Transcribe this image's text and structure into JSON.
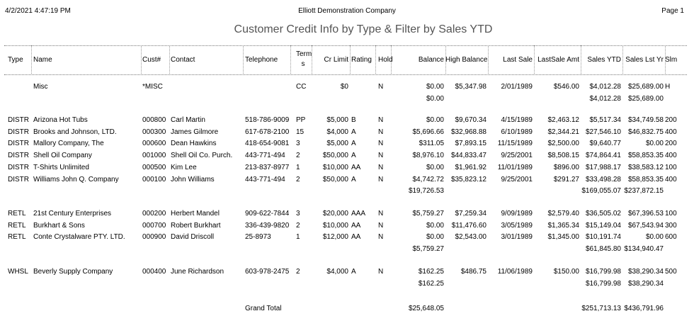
{
  "header": {
    "datetime": "4/2/2021 4:47:19 PM",
    "company": "Elliott Demonstration Company",
    "page": "Page 1",
    "title": "Customer Credit Info by Type & Filter by Sales YTD"
  },
  "columns": {
    "type": "Type",
    "name": "Name",
    "cust": "Cust#",
    "contact": "Contact",
    "phone": "Telephone",
    "terms_top": "Term",
    "terms_bottom": "s",
    "limit": "Cr Limit",
    "rating": "Rating",
    "hold": "Hold",
    "balance": "Balance",
    "high": "High Balance",
    "lastsale": "Last Sale",
    "lastamt": "LastSale Amt",
    "ytd": "Sales YTD",
    "lastyr": "Sales Lst Yr",
    "slm": "Slm"
  },
  "groups": [
    {
      "rows": [
        {
          "type": "",
          "name": "Misc",
          "cust": "*MISC",
          "contact": "",
          "phone": "",
          "terms": "CC",
          "limit": "$0",
          "rating": "",
          "hold": "N",
          "balance": "$0.00",
          "high": "$5,347.98",
          "lastsale": "2/01/1989",
          "lastamt": "$546.00",
          "ytd": "$4,012.28",
          "lastyr": "$25,689.00",
          "slm": "H"
        }
      ],
      "subtotal": {
        "balance": "$0.00",
        "ytd": "$4,012.28",
        "lastyr": "$25,689.00"
      }
    },
    {
      "rows": [
        {
          "type": "DISTR",
          "name": "Arizona Hot Tubs",
          "cust": "000800",
          "contact": "Carl Martin",
          "phone": "518-786-9009",
          "terms": "PP",
          "limit": "$5,000",
          "rating": "B",
          "hold": "N",
          "balance": "$0.00",
          "high": "$9,670.34",
          "lastsale": "4/15/1989",
          "lastamt": "$2,463.12",
          "ytd": "$5,517.34",
          "lastyr": "$34,749.58",
          "slm": "200"
        },
        {
          "type": "DISTR",
          "name": "Brooks and Johnson, LTD.",
          "cust": "000300",
          "contact": "James Gilmore",
          "phone": "617-678-2100",
          "terms": "15",
          "limit": "$4,000",
          "rating": "A",
          "hold": "N",
          "balance": "$5,696.66",
          "high": "$32,968.88",
          "lastsale": "6/10/1989",
          "lastamt": "$2,344.21",
          "ytd": "$27,546.10",
          "lastyr": "$46,832.75",
          "slm": "400"
        },
        {
          "type": "DISTR",
          "name": "Mallory Company, The",
          "cust": "000600",
          "contact": "Dean Hawkins",
          "phone": "418-654-9081",
          "terms": "3",
          "limit": "$5,000",
          "rating": "A",
          "hold": "N",
          "balance": "$311.05",
          "high": "$7,893.15",
          "lastsale": "11/15/1989",
          "lastamt": "$2,500.00",
          "ytd": "$9,640.77",
          "lastyr": "$0.00",
          "slm": "200"
        },
        {
          "type": "DISTR",
          "name": "Shell Oil Company",
          "cust": "001000",
          "contact": "Shell Oil Co. Purch.",
          "phone": "443-771-494",
          "terms": "2",
          "limit": "$50,000",
          "rating": "A",
          "hold": "N",
          "balance": "$8,976.10",
          "high": "$44,833.47",
          "lastsale": "9/25/2001",
          "lastamt": "$8,508.15",
          "ytd": "$74,864.41",
          "lastyr": "$58,853.35",
          "slm": "400"
        },
        {
          "type": "DISTR",
          "name": "T-Shirts Unlimited",
          "cust": "000500",
          "contact": "Kim Lee",
          "phone": "213-837-8977",
          "terms": "1",
          "limit": "$10,000",
          "rating": "AA",
          "hold": "N",
          "balance": "$0.00",
          "high": "$1,961.92",
          "lastsale": "11/01/1989",
          "lastamt": "$896.00",
          "ytd": "$17,988.17",
          "lastyr": "$38,583.12",
          "slm": "100"
        },
        {
          "type": "DISTR",
          "name": "Williams John Q. Company",
          "cust": "000100",
          "contact": "John Williams",
          "phone": "443-771-494",
          "terms": "2",
          "limit": "$50,000",
          "rating": "A",
          "hold": "N",
          "balance": "$4,742.72",
          "high": "$35,823.12",
          "lastsale": "9/25/2001",
          "lastamt": "$291.27",
          "ytd": "$33,498.28",
          "lastyr": "$58,853.35",
          "slm": "400"
        }
      ],
      "subtotal": {
        "balance": "$19,726.53",
        "ytd": "$169,055.07",
        "lastyr": "$237,872.15"
      }
    },
    {
      "rows": [
        {
          "type": "RETL",
          "name": "21st Century Enterprises",
          "cust": "000200",
          "contact": "Herbert Mandel",
          "phone": "909-622-7844",
          "terms": "3",
          "limit": "$20,000",
          "rating": "AAA",
          "hold": "N",
          "balance": "$5,759.27",
          "high": "$7,259.34",
          "lastsale": "9/09/1989",
          "lastamt": "$2,579.40",
          "ytd": "$36,505.02",
          "lastyr": "$67,396.53",
          "slm": "100"
        },
        {
          "type": "RETL",
          "name": "Burkhart & Sons",
          "cust": "000700",
          "contact": "Robert Burkhart",
          "phone": "336-439-9820",
          "terms": "2",
          "limit": "$10,000",
          "rating": "AA",
          "hold": "N",
          "balance": "$0.00",
          "high": "$11,476.60",
          "lastsale": "3/05/1989",
          "lastamt": "$1,365.34",
          "ytd": "$15,149.04",
          "lastyr": "$67,543.94",
          "slm": "300"
        },
        {
          "type": "RETL",
          "name": "Conte Crystalware PTY. LTD.",
          "cust": "000900",
          "contact": "David Driscoll",
          "phone": "25-8973",
          "terms": "1",
          "limit": "$12,000",
          "rating": "AA",
          "hold": "N",
          "balance": "$0.00",
          "high": "$2,543.00",
          "lastsale": "3/01/1989",
          "lastamt": "$1,345.00",
          "ytd": "$10,191.74",
          "lastyr": "$0.00",
          "slm": "600"
        }
      ],
      "subtotal": {
        "balance": "$5,759.27",
        "ytd": "$61,845.80",
        "lastyr": "$134,940.47"
      }
    },
    {
      "rows": [
        {
          "type": "WHSL",
          "name": "Beverly Supply Company",
          "cust": "000400",
          "contact": "June Richardson",
          "phone": "603-978-2475",
          "terms": "2",
          "limit": "$4,000",
          "rating": "A",
          "hold": "N",
          "balance": "$162.25",
          "high": "$486.75",
          "lastsale": "11/06/1989",
          "lastamt": "$150.00",
          "ytd": "$16,799.98",
          "lastyr": "$38,290.34",
          "slm": "500"
        }
      ],
      "subtotal": {
        "balance": "$162.25",
        "ytd": "$16,799.98",
        "lastyr": "$38,290.34"
      }
    }
  ],
  "grand_total": {
    "label": "Grand Total",
    "balance": "$25,648.05",
    "ytd": "$251,713.13",
    "lastyr": "$436,791.96"
  }
}
